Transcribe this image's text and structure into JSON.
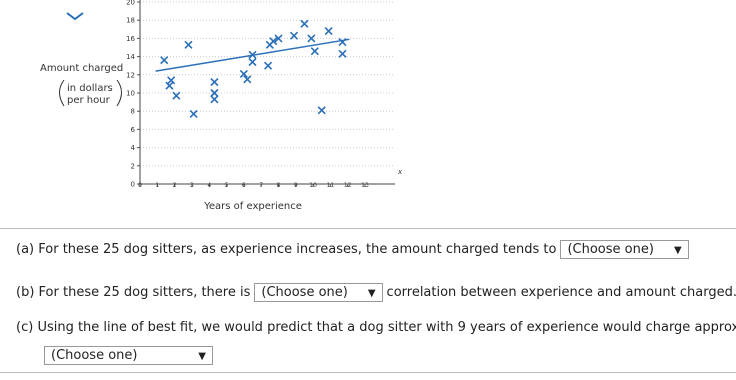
{
  "chart_data": {
    "type": "scatter",
    "x_label": "Years of experience",
    "y_label": "Amount charged",
    "y_label_sub": [
      "in dollars",
      "per hour"
    ],
    "x_axis_symbol": "x",
    "xlim": [
      0,
      13
    ],
    "xticks": [
      0,
      1,
      2,
      3,
      4,
      5,
      6,
      7,
      8,
      9,
      10,
      11,
      12,
      13
    ],
    "ylim": [
      0,
      20
    ],
    "yticks": [
      0,
      2,
      4,
      6,
      8,
      10,
      12,
      14,
      16,
      18,
      20
    ],
    "grid": true,
    "series": [
      {
        "color": "#2a6fb8",
        "x": [
          1.4,
          2.8,
          3.1,
          1.8,
          1.7,
          2.1,
          4.3,
          4.3,
          4.3,
          6.0,
          6.2,
          6.5,
          6.5,
          7.4,
          7.5,
          7.7,
          8.0,
          8.9,
          9.5,
          9.9,
          10.1,
          10.9,
          11.7,
          11.7,
          10.5
        ],
        "values": [
          13.6,
          15.3,
          7.7,
          11.4,
          10.8,
          9.7,
          11.2,
          10.0,
          9.3,
          12.1,
          11.5,
          14.2,
          13.4,
          13.0,
          15.3,
          15.7,
          16.0,
          16.3,
          17.6,
          16.0,
          14.6,
          16.8,
          15.6,
          14.3,
          8.1
        ]
      }
    ],
    "fit_line": {
      "color": "#2a6fb8",
      "x": [
        0.9,
        12.1
      ],
      "values": [
        12.4,
        15.9
      ]
    }
  },
  "questions": [
    {
      "label": "(a)",
      "before": "For these 25 dog sitters, as experience increases, the amount charged tends to",
      "dropdown": "(Choose one)",
      "after": null
    },
    {
      "label": "(b)",
      "before": "For these 25 dog sitters, there is",
      "dropdown": "(Choose one)",
      "after": "correlation between experience and amount charged."
    },
    {
      "label": "(c)",
      "before": "Using the line of best fit, we would predict that a dog sitter with 9 years of experience would charge approxima",
      "dropdown": "(Choose one)",
      "after": null
    }
  ]
}
